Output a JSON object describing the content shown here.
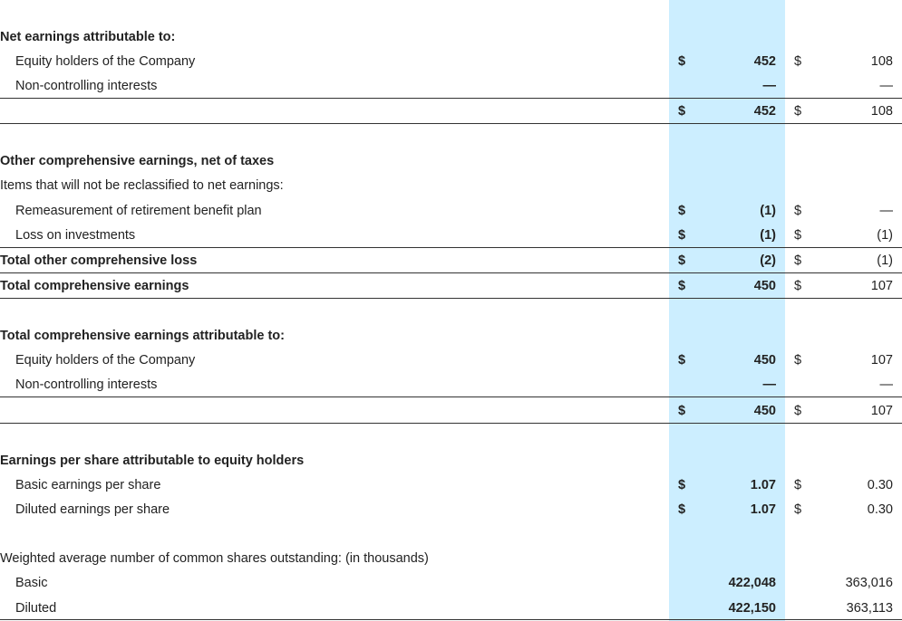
{
  "rows": [
    {
      "label": "Net earnings attributable to:",
      "bold": true
    },
    {
      "label": "Equity holders of the Company",
      "c1": "$",
      "v1": "452",
      "c2": "$",
      "v2": "108"
    },
    {
      "label": "Non-controlling interests",
      "v1": "—",
      "v2": "—"
    },
    {
      "c1": "$",
      "v1": "452",
      "c2": "$",
      "v2": "108"
    },
    {
      "label": "Other comprehensive earnings, net of taxes",
      "bold": true
    },
    {
      "label": "Items that will not be reclassified to net earnings:"
    },
    {
      "label": "Remeasurement of retirement benefit plan",
      "c1": "$",
      "v1": "(1)",
      "c2": "$",
      "v2": "—"
    },
    {
      "label": "Loss on investments",
      "c1": "$",
      "v1": "(1)",
      "c2": "$",
      "v2": "(1)"
    },
    {
      "label": "Total other comprehensive loss",
      "bold": true,
      "c1": "$",
      "v1": "(2)",
      "c2": "$",
      "v2": "(1)"
    },
    {
      "label": "Total comprehensive earnings",
      "bold": true,
      "c1": "$",
      "v1": "450",
      "c2": "$",
      "v2": "107"
    },
    {
      "label": "Total comprehensive earnings attributable to:",
      "bold": true
    },
    {
      "label": "Equity holders of the Company",
      "c1": "$",
      "v1": "450",
      "c2": "$",
      "v2": "107"
    },
    {
      "label": "Non-controlling interests",
      "v1": "—",
      "v2": "—"
    },
    {
      "c1": "$",
      "v1": "450",
      "c2": "$",
      "v2": "107"
    },
    {
      "label": "Earnings per share attributable to equity holders",
      "bold": true
    },
    {
      "label": "Basic earnings per share",
      "c1": "$",
      "v1": "1.07",
      "c2": "$",
      "v2": "0.30"
    },
    {
      "label": "Diluted earnings per share",
      "c1": "$",
      "v1": "1.07",
      "c2": "$",
      "v2": "0.30"
    },
    {
      "label": "Weighted average number of common shares outstanding: (in thousands)"
    },
    {
      "label": "Basic",
      "v1": "422,048",
      "v2": "363,016"
    },
    {
      "label": "Diluted",
      "v1": "422,150",
      "v2": "363,113"
    }
  ]
}
